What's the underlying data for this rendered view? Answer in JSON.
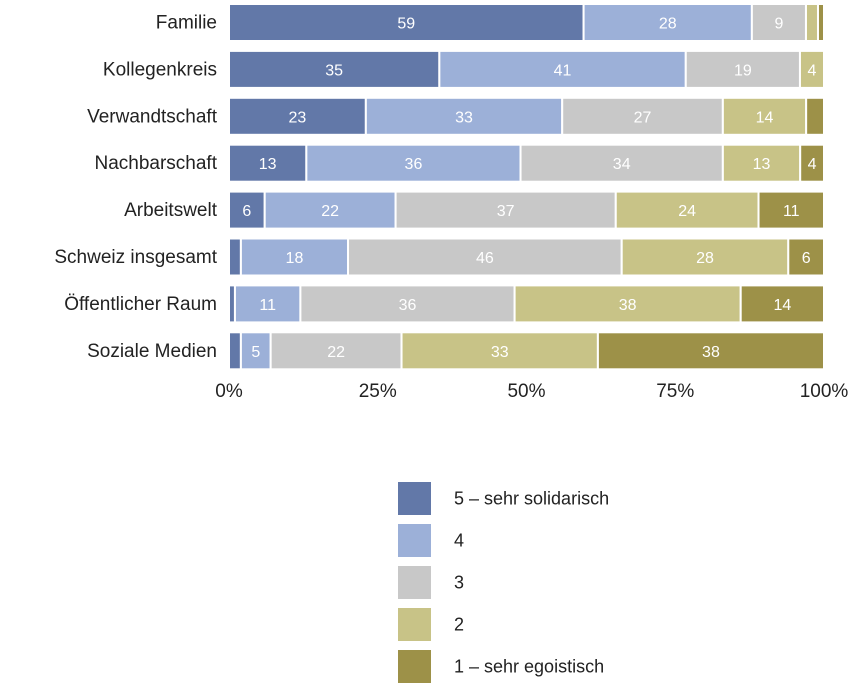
{
  "chart_data": {
    "type": "bar",
    "orientation": "horizontal",
    "stacked": "percent",
    "categories": [
      "Familie",
      "Kollegenkreis",
      "Verwandtschaft",
      "Nachbarschaft",
      "Arbeitswelt",
      "Schweiz insgesamt",
      "Öffentlicher Raum",
      "Soziale Medien"
    ],
    "series": [
      {
        "name": "5 – sehr solidarisch",
        "color": "#6278a8",
        "label_color": "#ffffff",
        "values": [
          59,
          35,
          23,
          13,
          6,
          2,
          1,
          2
        ]
      },
      {
        "name": "4",
        "color": "#9cb0d8",
        "label_color": "#ffffff",
        "values": [
          28,
          41,
          33,
          36,
          22,
          18,
          11,
          5
        ]
      },
      {
        "name": "3",
        "color": "#c8c8c8",
        "label_color": "#ffffff",
        "values": [
          9,
          19,
          27,
          34,
          37,
          46,
          36,
          22
        ]
      },
      {
        "name": "2",
        "color": "#c8c387",
        "label_color": "#ffffff",
        "values": [
          2,
          4,
          14,
          13,
          24,
          28,
          38,
          33
        ]
      },
      {
        "name": "1 – sehr egoistisch",
        "color": "#9d9148",
        "label_color": "#ffffff",
        "values": [
          1,
          0,
          3,
          4,
          11,
          6,
          14,
          38
        ]
      }
    ],
    "x_ticks": [
      "0%",
      "25%",
      "50%",
      "75%",
      "100%"
    ],
    "xlim": [
      0,
      100
    ],
    "min_label_value": 4,
    "title": "",
    "xlabel": "",
    "ylabel": "",
    "grid": false,
    "legend_position": "bottom"
  }
}
